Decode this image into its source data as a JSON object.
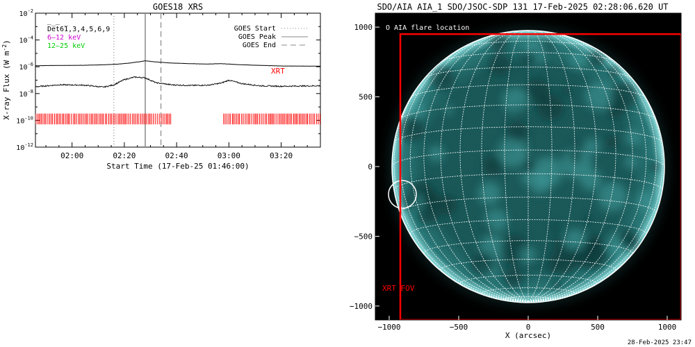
{
  "chart_data": [
    {
      "type": "line",
      "title": "GOES18 XRS",
      "xlabel": "Start Time (17-Feb-25 01:46:00)",
      "ylabel": "X-ray Flux (W m",
      "ylabel_sup": "-2",
      "ylabel_close": ")",
      "y_scale": "log",
      "ylim": [
        1e-12,
        0.01
      ],
      "y_ticks": [
        {
          "value": 0.01,
          "base": "10",
          "exp": "-2"
        },
        {
          "value": 0.0001,
          "base": "10",
          "exp": "-4"
        },
        {
          "value": 1e-06,
          "base": "10",
          "exp": "-6"
        },
        {
          "value": 1e-08,
          "base": "10",
          "exp": "-8"
        },
        {
          "value": 1e-10,
          "base": "10",
          "exp": "-10"
        },
        {
          "value": 1e-12,
          "base": "10",
          "exp": "-12"
        }
      ],
      "xlim": [
        "01:46",
        "03:35"
      ],
      "x_ticks": [
        "02:00",
        "02:20",
        "02:40",
        "03:00",
        "03:20"
      ],
      "legend_placement": "top-right",
      "legend": [
        {
          "label": "GOES Start",
          "style": "dotted"
        },
        {
          "label": "GOES Peak",
          "style": "solid"
        },
        {
          "label": "GOES End",
          "style": "dashed"
        }
      ],
      "channel_labels": [
        {
          "text": "D̅e̅t̅6̅1,3,4,5,6,9",
          "color": "#000000"
        },
        {
          "text": "6–12 keV",
          "color": "#cc00cc"
        },
        {
          "text": "12–25 keV",
          "color": "#00cc00"
        }
      ],
      "markers": {
        "goes_start": "02:16",
        "goes_peak": "02:28",
        "goes_end": "02:34"
      },
      "series": [
        {
          "name": "6–12 keV",
          "color": "#000000",
          "x": [
            "01:46",
            "01:55",
            "02:05",
            "02:12",
            "02:18",
            "02:22",
            "02:26",
            "02:28",
            "02:32",
            "02:38",
            "02:45",
            "02:52",
            "02:57",
            "03:02",
            "03:10",
            "03:20",
            "03:35"
          ],
          "values": [
            1.2e-06,
            1.25e-06,
            1.3e-06,
            1.4e-06,
            1.6e-06,
            1.9e-06,
            2.4e-06,
            2.8e-06,
            2.3e-06,
            1.9e-06,
            1.7e-06,
            1.6e-06,
            1.7e-06,
            1.5e-06,
            1.3e-06,
            1.15e-06,
            1.1e-06
          ]
        },
        {
          "name": "12–25 keV",
          "color": "#000000",
          "x": [
            "01:46",
            "01:55",
            "02:05",
            "02:12",
            "02:16",
            "02:20",
            "02:24",
            "02:28",
            "02:32",
            "02:38",
            "02:45",
            "02:52",
            "02:57",
            "03:00",
            "03:05",
            "03:12",
            "03:20",
            "03:35"
          ],
          "values": [
            3.2e-08,
            4.5e-08,
            4.2e-08,
            3e-08,
            4.5e-08,
            1.1e-07,
            1.7e-07,
            1.5e-07,
            6.5e-08,
            4.5e-08,
            4e-08,
            4.2e-08,
            6e-08,
            1e-07,
            5.5e-08,
            3.8e-08,
            3.5e-08,
            3.8e-08
          ]
        }
      ],
      "xrt_label": "XRT",
      "xrt_color": "#ff0000",
      "xrt_coverage": [
        [
          "01:46",
          "02:38"
        ],
        [
          "02:58",
          "03:35"
        ]
      ]
    },
    {
      "type": "scatter",
      "title": "SDO/AIA AIA_1 SDO/JSOC-SDP 131 17-Feb-2025 02:28:06.620 UT",
      "xlabel": "X (arcsec)",
      "ylabel": "",
      "xlim": [
        -1100,
        1100
      ],
      "ylim": [
        -1100,
        1100
      ],
      "x_ticks": [
        -1000,
        -500,
        0,
        500,
        1000
      ],
      "x_tick_labels": [
        "−1000",
        "−500",
        "0",
        "500",
        "1000"
      ],
      "y_ticks": [
        1000,
        500,
        0,
        -500,
        -1000
      ],
      "y_tick_labels": [
        "1000",
        "500",
        "0",
        "−500",
        "−1000"
      ],
      "solar_radius_arcsec": 980,
      "grid_spacing_deg": 10,
      "legend_label": "O AIA flare location",
      "flare_location_arcsec": [
        -905,
        -200
      ],
      "fov": {
        "label": "XRT FOV",
        "x": [
          -920,
          1100
        ],
        "y": [
          -1100,
          950
        ],
        "color": "#ff0000"
      },
      "disk_color": "#0f4e4e",
      "background_color": "#000000"
    }
  ],
  "footer_date": "28-Feb-2025 23:47"
}
